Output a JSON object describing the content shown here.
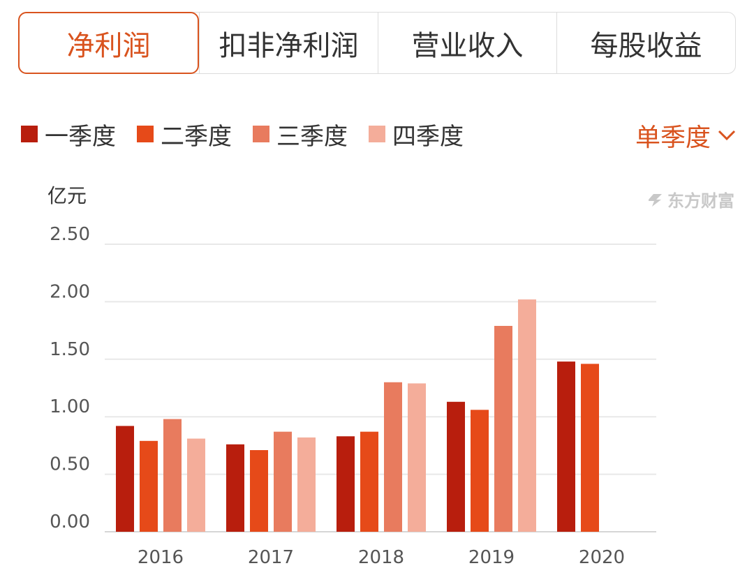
{
  "tabs": [
    {
      "label": "净利润",
      "active": true
    },
    {
      "label": "扣非净利润",
      "active": false
    },
    {
      "label": "营业收入",
      "active": false
    },
    {
      "label": "每股收益",
      "active": false
    }
  ],
  "legend": [
    {
      "label": "一季度",
      "color": "#b81e0d"
    },
    {
      "label": "二季度",
      "color": "#e64a19"
    },
    {
      "label": "三季度",
      "color": "#e87b5e"
    },
    {
      "label": "四季度",
      "color": "#f4ad9a"
    }
  ],
  "mode_selector": {
    "label": "单季度",
    "icon": "chevron-down-icon"
  },
  "watermark": {
    "text": "东方财富",
    "icon": "eastmoney-logo-icon"
  },
  "accent_color": "#d9531e",
  "chart_data": {
    "type": "bar",
    "unit_label": "亿元",
    "categories": [
      "2016",
      "2017",
      "2018",
      "2019",
      "2020"
    ],
    "y_ticks": [
      "0.00",
      "0.50",
      "1.00",
      "1.50",
      "2.00",
      "2.50"
    ],
    "ylim": [
      0,
      2.5
    ],
    "grid": true,
    "legend_position": "top-left",
    "series": [
      {
        "name": "一季度",
        "color": "#b81e0d",
        "values": [
          0.92,
          0.76,
          0.83,
          1.13,
          1.48
        ]
      },
      {
        "name": "二季度",
        "color": "#e64a19",
        "values": [
          0.79,
          0.71,
          0.87,
          1.06,
          1.46
        ]
      },
      {
        "name": "三季度",
        "color": "#e87b5e",
        "values": [
          0.98,
          0.87,
          1.3,
          1.79,
          null
        ]
      },
      {
        "name": "四季度",
        "color": "#f4ad9a",
        "values": [
          0.81,
          0.82,
          1.29,
          2.02,
          null
        ]
      }
    ]
  }
}
